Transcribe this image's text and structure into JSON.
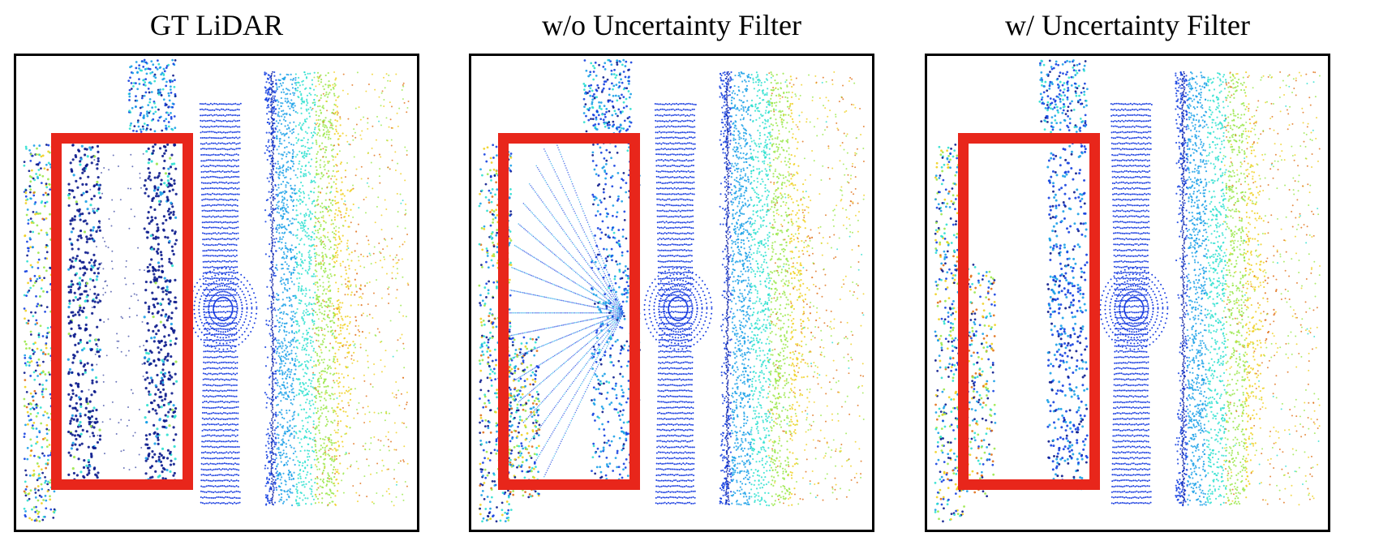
{
  "figure": {
    "panels": [
      {
        "id": "gt",
        "title": "GT LiDAR",
        "variant": "gt"
      },
      {
        "id": "wo",
        "title": "w/o Uncertainty Filter",
        "variant": "wo"
      },
      {
        "id": "w",
        "title": "w/ Uncertainty Filter",
        "variant": "w"
      }
    ],
    "colors": {
      "highlight_box": "#e8261b",
      "frame": "#000000",
      "colormap": [
        "#0a1a8c",
        "#1440e0",
        "#1aa0e8",
        "#2ee0d0",
        "#9ae84a",
        "#f0d020",
        "#e07018",
        "#b01818"
      ]
    }
  }
}
